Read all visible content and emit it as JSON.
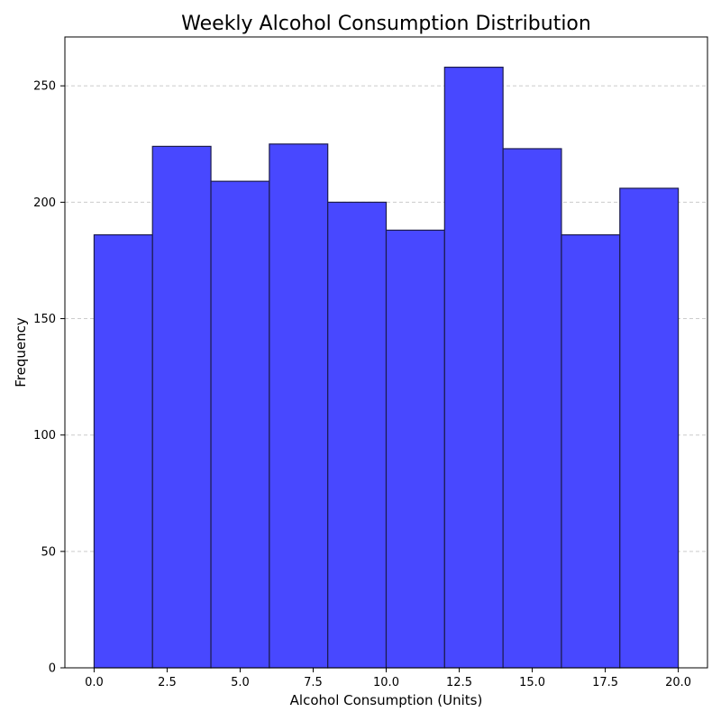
{
  "chart_data": {
    "type": "bar",
    "title": "Weekly Alcohol Consumption Distribution",
    "xlabel": "Alcohol Consumption (Units)",
    "ylabel": "Frequency",
    "bins": [
      {
        "x0": 0,
        "x1": 2,
        "value": 186
      },
      {
        "x0": 2,
        "x1": 4,
        "value": 224
      },
      {
        "x0": 4,
        "x1": 6,
        "value": 209
      },
      {
        "x0": 6,
        "x1": 8,
        "value": 225
      },
      {
        "x0": 8,
        "x1": 10,
        "value": 200
      },
      {
        "x0": 10,
        "x1": 12,
        "value": 188
      },
      {
        "x0": 12,
        "x1": 14,
        "value": 258
      },
      {
        "x0": 14,
        "x1": 16,
        "value": 223
      },
      {
        "x0": 16,
        "x1": 18,
        "value": 186
      },
      {
        "x0": 18,
        "x1": 20,
        "value": 206
      }
    ],
    "xlim": [
      -1,
      21
    ],
    "ylim": [
      0,
      271
    ],
    "x_ticks": [
      0.0,
      2.5,
      5.0,
      7.5,
      10.0,
      12.5,
      15.0,
      17.5,
      20.0
    ],
    "x_tick_labels": [
      "0.0",
      "2.5",
      "5.0",
      "7.5",
      "10.0",
      "12.5",
      "15.0",
      "17.5",
      "20.0"
    ],
    "y_ticks": [
      0,
      50,
      100,
      150,
      200,
      250
    ],
    "y_tick_labels": [
      "0",
      "50",
      "100",
      "150",
      "200",
      "250"
    ],
    "grid": "y-axis dashed",
    "colors": {
      "bar_fill": "#4848ff",
      "bar_edge": "#1c1c4e",
      "grid": "#cccccc",
      "axis": "#000000"
    }
  }
}
